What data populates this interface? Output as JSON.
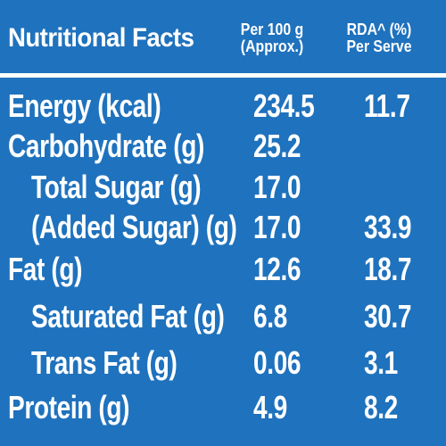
{
  "table": {
    "title": "Nutritional Facts",
    "col_per100_line1": "Per 100 g",
    "col_per100_line2": "(Approx.)",
    "col_rda_line1": "RDA^ (%)",
    "col_rda_line2": "Per Serve",
    "rows": [
      {
        "label": "Energy (kcal)",
        "per100": "234.5",
        "rda": "11.7"
      },
      {
        "label": "Carbohydrate (g)",
        "per100": "25.2",
        "rda": ""
      },
      {
        "label": "Total Sugar (g)",
        "per100": "17.0",
        "rda": ""
      },
      {
        "label": "(Added Sugar) (g)",
        "per100": "17.0",
        "rda": "33.9"
      },
      {
        "label": "Fat (g)",
        "per100": "12.6",
        "rda": "18.7"
      },
      {
        "label": "Saturated Fat (g)",
        "per100": "6.8",
        "rda": "30.7"
      },
      {
        "label": "Trans Fat (g)",
        "per100": "0.06",
        "rda": "3.1"
      },
      {
        "label": "Protein (g)",
        "per100": "4.9",
        "rda": "8.2"
      }
    ]
  },
  "colors": {
    "background": "#1f72bd",
    "text": "#ffffff"
  }
}
